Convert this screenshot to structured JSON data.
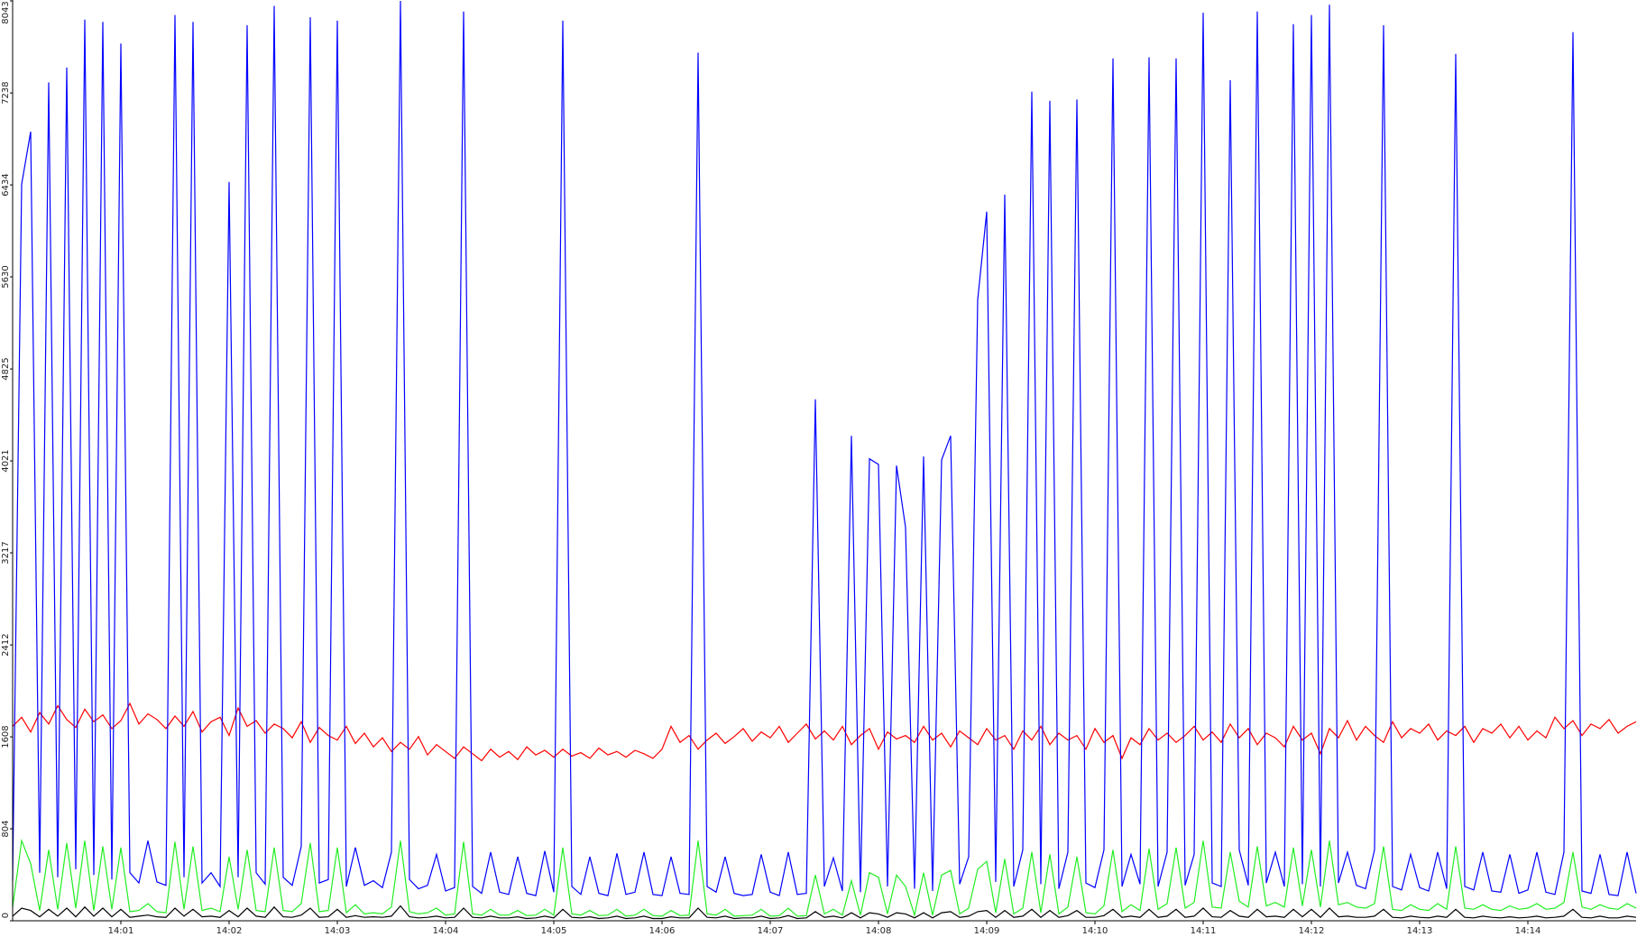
{
  "chart_data": {
    "type": "line",
    "categories": [
      null,
      null,
      null,
      null,
      null,
      null,
      null,
      null,
      null,
      null,
      null,
      null,
      "14:01",
      null,
      null,
      null,
      null,
      null,
      null,
      null,
      null,
      null,
      null,
      null,
      "14:02",
      null,
      null,
      null,
      null,
      null,
      null,
      null,
      null,
      null,
      null,
      null,
      "14:03",
      null,
      null,
      null,
      null,
      null,
      null,
      null,
      null,
      null,
      null,
      null,
      "14:04",
      null,
      null,
      null,
      null,
      null,
      null,
      null,
      null,
      null,
      null,
      null,
      "14:05",
      null,
      null,
      null,
      null,
      null,
      null,
      null,
      null,
      null,
      null,
      null,
      "14:06",
      null,
      null,
      null,
      null,
      null,
      null,
      null,
      null,
      null,
      null,
      null,
      "14:07",
      null,
      null,
      null,
      null,
      null,
      null,
      null,
      null,
      null,
      null,
      null,
      "14:08",
      null,
      null,
      null,
      null,
      null,
      null,
      null,
      null,
      null,
      null,
      null,
      "14:09",
      null,
      null,
      null,
      null,
      null,
      null,
      null,
      null,
      null,
      null,
      null,
      "14:10",
      null,
      null,
      null,
      null,
      null,
      null,
      null,
      null,
      null,
      null,
      null,
      "14:11",
      null,
      null,
      null,
      null,
      null,
      null,
      null,
      null,
      null,
      null,
      null,
      "14:12",
      null,
      null,
      null,
      null,
      null,
      null,
      null,
      null,
      null,
      null,
      null,
      "14:13",
      null,
      null,
      null,
      null,
      null,
      null,
      null,
      null,
      null,
      null,
      null,
      "14:14",
      null,
      null,
      null,
      null,
      null,
      null,
      null,
      null,
      null,
      null,
      null,
      null
    ],
    "series": [
      {
        "color": "#ff0000",
        "values": [
          1700,
          1780,
          1650,
          1820,
          1720,
          1880,
          1760,
          1690,
          1850,
          1740,
          1800,
          1680,
          1750,
          1900,
          1720,
          1810,
          1760,
          1680,
          1790,
          1700,
          1830,
          1650,
          1740,
          1780,
          1620,
          1860,
          1700,
          1750,
          1640,
          1720,
          1680,
          1600,
          1740,
          1560,
          1690,
          1620,
          1580,
          1700,
          1550,
          1640,
          1520,
          1600,
          1480,
          1560,
          1500,
          1610,
          1450,
          1540,
          1480,
          1420,
          1520,
          1460,
          1400,
          1500,
          1430,
          1480,
          1410,
          1520,
          1450,
          1490,
          1430,
          1500,
          1440,
          1470,
          1420,
          1510,
          1450,
          1480,
          1430,
          1490,
          1460,
          1420,
          1500,
          1700,
          1560,
          1620,
          1500,
          1580,
          1640,
          1550,
          1610,
          1680,
          1570,
          1650,
          1600,
          1700,
          1560,
          1640,
          1720,
          1590,
          1660,
          1580,
          1700,
          1540,
          1620,
          1680,
          1500,
          1650,
          1590,
          1620,
          1560,
          1700,
          1580,
          1640,
          1520,
          1660,
          1600,
          1540,
          1680,
          1580,
          1620,
          1500,
          1660,
          1580,
          1700,
          1540,
          1640,
          1580,
          1620,
          1500,
          1680,
          1560,
          1620,
          1420,
          1600,
          1540,
          1680,
          1580,
          1640,
          1560,
          1620,
          1700,
          1580,
          1650,
          1560,
          1720,
          1600,
          1680,
          1540,
          1640,
          1600,
          1520,
          1700,
          1580,
          1640,
          1460,
          1680,
          1600,
          1750,
          1580,
          1700,
          1620,
          1560,
          1740,
          1600,
          1680,
          1640,
          1720,
          1580,
          1660,
          1620,
          1700,
          1560,
          1680,
          1640,
          1720,
          1600,
          1700,
          1580,
          1660,
          1600,
          1780,
          1680,
          1750,
          1620,
          1720,
          1680,
          1760,
          1640,
          1700,
          1740
        ]
      },
      {
        "color": "#0000ff",
        "values": [
          350,
          6440,
          6900,
          420,
          7330,
          380,
          7460,
          450,
          7880,
          400,
          7860,
          360,
          7670,
          420,
          330,
          700,
          340,
          310,
          7920,
          380,
          7860,
          330,
          420,
          300,
          6460,
          380,
          7830,
          420,
          320,
          8000,
          380,
          310,
          650,
          7900,
          330,
          360,
          7870,
          300,
          640,
          310,
          350,
          290,
          600,
          8043,
          360,
          280,
          310,
          580,
          260,
          290,
          7950,
          300,
          240,
          600,
          250,
          230,
          560,
          240,
          220,
          610,
          250,
          7870,
          300,
          230,
          560,
          240,
          220,
          590,
          230,
          250,
          600,
          230,
          220,
          560,
          240,
          230,
          7590,
          300,
          250,
          560,
          240,
          220,
          230,
          580,
          250,
          220,
          600,
          230,
          240,
          4560,
          300,
          550,
          260,
          4240,
          250,
          4040,
          3990,
          300,
          3980,
          3440,
          280,
          4060,
          260,
          4030,
          4240,
          320,
          560,
          5430,
          6200,
          340,
          6350,
          300,
          620,
          7250,
          320,
          7170,
          280,
          600,
          7180,
          330,
          290,
          620,
          7540,
          300,
          580,
          320,
          7550,
          300,
          600,
          7540,
          310,
          580,
          7940,
          330,
          300,
          7350,
          620,
          310,
          7950,
          330,
          600,
          300,
          7840,
          320,
          7920,
          300,
          8010,
          330,
          600,
          310,
          280,
          620,
          7830,
          300,
          270,
          580,
          290,
          260,
          600,
          280,
          7580,
          300,
          270,
          600,
          260,
          250,
          580,
          240,
          270,
          600,
          250,
          230,
          600,
          7770,
          260,
          240,
          580,
          230,
          220,
          600,
          240
        ]
      },
      {
        "color": "#22ee22",
        "values": [
          120,
          700,
          500,
          90,
          620,
          100,
          680,
          110,
          700,
          90,
          650,
          100,
          640,
          80,
          90,
          150,
          80,
          70,
          690,
          100,
          650,
          90,
          110,
          80,
          560,
          100,
          620,
          90,
          80,
          640,
          90,
          80,
          150,
          680,
          80,
          90,
          640,
          70,
          140,
          60,
          70,
          60,
          120,
          700,
          80,
          60,
          70,
          110,
          50,
          60,
          690,
          60,
          50,
          100,
          50,
          50,
          90,
          45,
          50,
          100,
          50,
          640,
          60,
          50,
          90,
          45,
          50,
          100,
          40,
          50,
          100,
          45,
          40,
          90,
          45,
          50,
          700,
          60,
          50,
          100,
          40,
          45,
          50,
          100,
          40,
          45,
          110,
          40,
          45,
          400,
          60,
          100,
          50,
          350,
          50,
          420,
          380,
          60,
          400,
          300,
          50,
          420,
          50,
          400,
          440,
          60,
          110,
          450,
          520,
          70,
          540,
          60,
          110,
          600,
          70,
          580,
          60,
          120,
          560,
          70,
          60,
          130,
          620,
          80,
          140,
          90,
          630,
          100,
          150,
          640,
          110,
          160,
          700,
          120,
          110,
          600,
          170,
          120,
          650,
          130,
          160,
          120,
          640,
          130,
          620,
          120,
          700,
          140,
          160,
          120,
          110,
          150,
          650,
          100,
          90,
          140,
          100,
          90,
          150,
          100,
          650,
          110,
          100,
          140,
          100,
          90,
          130,
          100,
          110,
          150,
          100,
          110,
          160,
          600,
          120,
          100,
          140,
          110,
          100,
          150,
          110
        ]
      },
      {
        "color": "#000000",
        "values": [
          40,
          110,
          90,
          35,
          100,
          40,
          110,
          35,
          120,
          40,
          110,
          35,
          100,
          30,
          40,
          50,
          35,
          30,
          110,
          40,
          100,
          35,
          40,
          30,
          90,
          35,
          110,
          40,
          30,
          120,
          35,
          30,
          50,
          110,
          30,
          35,
          100,
          30,
          45,
          30,
          35,
          30,
          40,
          130,
          35,
          25,
          30,
          40,
          25,
          30,
          110,
          30,
          25,
          40,
          25,
          25,
          35,
          20,
          25,
          40,
          25,
          100,
          30,
          25,
          35,
          20,
          25,
          40,
          20,
          25,
          40,
          20,
          20,
          35,
          25,
          25,
          110,
          30,
          25,
          40,
          20,
          25,
          25,
          40,
          20,
          25,
          45,
          20,
          25,
          80,
          30,
          40,
          25,
          70,
          25,
          70,
          60,
          30,
          70,
          60,
          25,
          70,
          25,
          70,
          80,
          30,
          40,
          80,
          90,
          30,
          90,
          30,
          40,
          100,
          30,
          90,
          30,
          45,
          90,
          30,
          30,
          45,
          100,
          30,
          40,
          30,
          100,
          30,
          40,
          100,
          30,
          40,
          110,
          35,
          30,
          90,
          40,
          30,
          100,
          35,
          40,
          30,
          100,
          35,
          100,
          30,
          110,
          35,
          40,
          30,
          30,
          40,
          100,
          30,
          25,
          40,
          30,
          25,
          40,
          30,
          100,
          30,
          25,
          40,
          30,
          25,
          35,
          25,
          30,
          40,
          25,
          30,
          40,
          100,
          30,
          25,
          40,
          25,
          25,
          40,
          30
        ]
      }
    ],
    "ylim": [
      0,
      8043
    ],
    "yticks": [
      0,
      804,
      1608,
      2412,
      3217,
      4021,
      4825,
      5630,
      6434,
      7238,
      8043
    ]
  }
}
